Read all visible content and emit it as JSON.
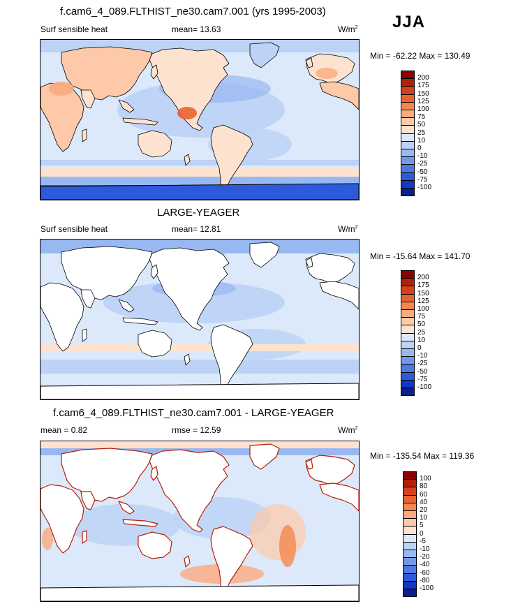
{
  "season": "JJA",
  "panels": [
    {
      "title": "f.cam6_4_089.FLTHIST_ne30.cam7.001 (yrs 1995-2003)",
      "left_label": "Surf sensible heat",
      "center_label": "mean=  13.63",
      "units": "W/m",
      "units_sup": "2",
      "minmax": "Min = -62.22 Max = 130.49",
      "colorbar": {
        "ticks": [
          "200",
          "175",
          "150",
          "125",
          "100",
          "75",
          "50",
          "25",
          "10",
          "0",
          "-10",
          "-25",
          "-50",
          "-75",
          "-100"
        ],
        "colors": [
          "#8b0000",
          "#b3200a",
          "#d6401a",
          "#ea6232",
          "#f5874e",
          "#fbaa7e",
          "#fdc9a8",
          "#fde3cf",
          "#dce9fb",
          "#bcd2f6",
          "#98b8f1",
          "#7298ea",
          "#4f79e0",
          "#2c5adb",
          "#1238c4",
          "#0a1e8f"
        ]
      },
      "land_mode": "data"
    },
    {
      "title": "LARGE-YEAGER",
      "left_label": "Surf sensible heat",
      "center_label": "mean=  12.81",
      "units": "W/m",
      "units_sup": "2",
      "minmax": "Min = -15.64 Max = 141.70",
      "colorbar": {
        "ticks": [
          "200",
          "175",
          "150",
          "125",
          "100",
          "75",
          "50",
          "25",
          "10",
          "0",
          "-10",
          "-25",
          "-50",
          "-75",
          "-100"
        ],
        "colors": [
          "#8b0000",
          "#b3200a",
          "#d6401a",
          "#ea6232",
          "#f5874e",
          "#fbaa7e",
          "#fdc9a8",
          "#fde3cf",
          "#dce9fb",
          "#bcd2f6",
          "#98b8f1",
          "#7298ea",
          "#4f79e0",
          "#2c5adb",
          "#1238c4",
          "#0a1e8f"
        ]
      },
      "land_mode": "blank"
    },
    {
      "title": "f.cam6_4_089.FLTHIST_ne30.cam7.001 - LARGE-YEAGER",
      "left_label": "mean =  0.82",
      "center_label": "rmse =  12.59",
      "units": "W/m",
      "units_sup": "2",
      "minmax": "Min = -135.54 Max = 119.36",
      "colorbar": {
        "ticks": [
          "100",
          "80",
          "60",
          "40",
          "20",
          "10",
          "5",
          "0",
          "-5",
          "-10",
          "-20",
          "-40",
          "-60",
          "-80",
          "-100"
        ],
        "colors": [
          "#8b0000",
          "#b3200a",
          "#d6401a",
          "#ea6232",
          "#f5874e",
          "#fbaa7e",
          "#fdc9a8",
          "#fde3cf",
          "#dce9fb",
          "#bcd2f6",
          "#98b8f1",
          "#7298ea",
          "#4f79e0",
          "#2c5adb",
          "#1238c4",
          "#0a1e8f"
        ]
      },
      "land_mode": "blank"
    }
  ]
}
